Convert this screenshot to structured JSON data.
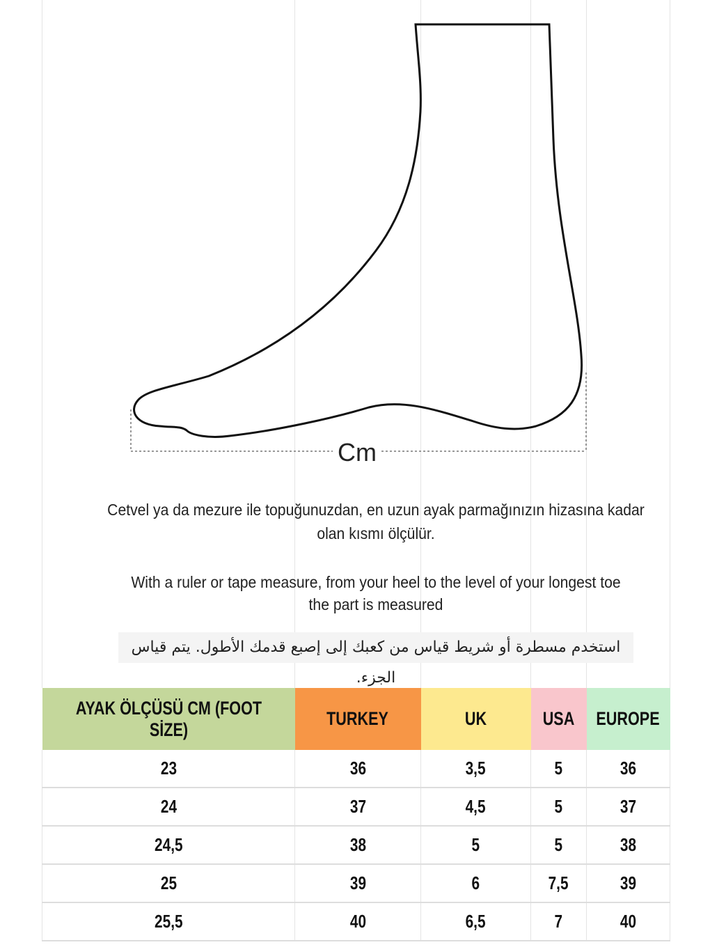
{
  "diagram": {
    "measure_label": "Cm"
  },
  "instructions": {
    "turkish_line1": "Cetvel ya da mezure ile topuğunuzdan, en uzun ayak parmağınızın hizasına kadar",
    "turkish_line2": "olan kısmı ölçülür.",
    "english_line1": "With a ruler or tape measure, from your heel to the level of your longest toe",
    "english_line2": "the part is measured",
    "arabic": "استخدم مسطرة أو شريط قياس من كعبك إلى إصبع قدمك الأطول.  يتم قياس الجزء."
  },
  "table": {
    "headers": [
      "AYAK ÖLÇÜSÜ CM (FOOT SİZE)",
      "TURKEY",
      "UK",
      "USA",
      "EUROPE"
    ],
    "header_colors": [
      "#c4d79b",
      "#f79646",
      "#fde98f",
      "#f9c6cc",
      "#c6efce"
    ],
    "rows": [
      [
        "23",
        "36",
        "3,5",
        "5",
        "36"
      ],
      [
        "24",
        "37",
        "4,5",
        "5",
        "37"
      ],
      [
        "24,5",
        "38",
        "5",
        "5",
        "38"
      ],
      [
        "25",
        "39",
        "6",
        "7,5",
        "39"
      ],
      [
        "25,5",
        "40",
        "6,5",
        "7",
        "40"
      ]
    ]
  }
}
